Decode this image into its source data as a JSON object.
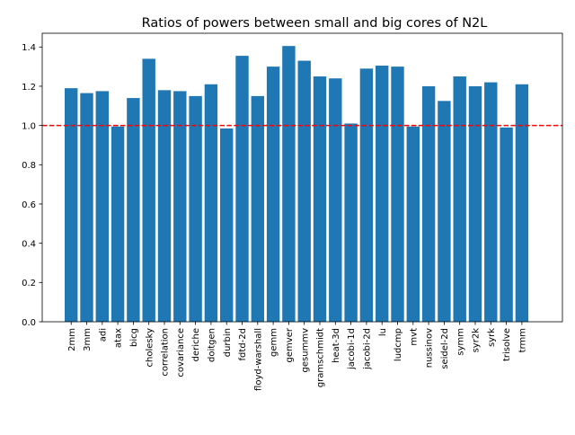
{
  "chart_data": {
    "type": "bar",
    "title": "Ratios of powers between small and big cores of N2L",
    "xlabel": "",
    "ylabel": "",
    "categories": [
      "2mm",
      "3mm",
      "adi",
      "atax",
      "bicg",
      "cholesky",
      "correlation",
      "covariance",
      "deriche",
      "doitgen",
      "durbin",
      "fdtd-2d",
      "floyd-warshall",
      "gemm",
      "gemver",
      "gesummv",
      "gramschmidt",
      "heat-3d",
      "jacobi-1d",
      "jacobi-2d",
      "lu",
      "ludcmp",
      "mvt",
      "nussinov",
      "seidel-2d",
      "symm",
      "syr2k",
      "syrk",
      "trisolve",
      "trmm"
    ],
    "values": [
      1.19,
      1.165,
      1.175,
      0.995,
      1.14,
      1.34,
      1.18,
      1.175,
      1.15,
      1.21,
      0.985,
      1.355,
      1.15,
      1.3,
      1.405,
      1.33,
      1.25,
      1.24,
      1.01,
      1.29,
      1.305,
      1.3,
      0.995,
      1.2,
      1.125,
      1.25,
      1.2,
      1.22,
      0.99,
      1.21
    ],
    "ylim": [
      0,
      1.47
    ],
    "yticks": [
      "0.0",
      "0.2",
      "0.4",
      "0.6",
      "0.8",
      "1.0",
      "1.2",
      "1.4"
    ],
    "reference_line": {
      "y": 1.0,
      "style": "dashed"
    },
    "bar_color": "#1f77b4",
    "reference_line_color": "#ff0000",
    "grid": false
  }
}
